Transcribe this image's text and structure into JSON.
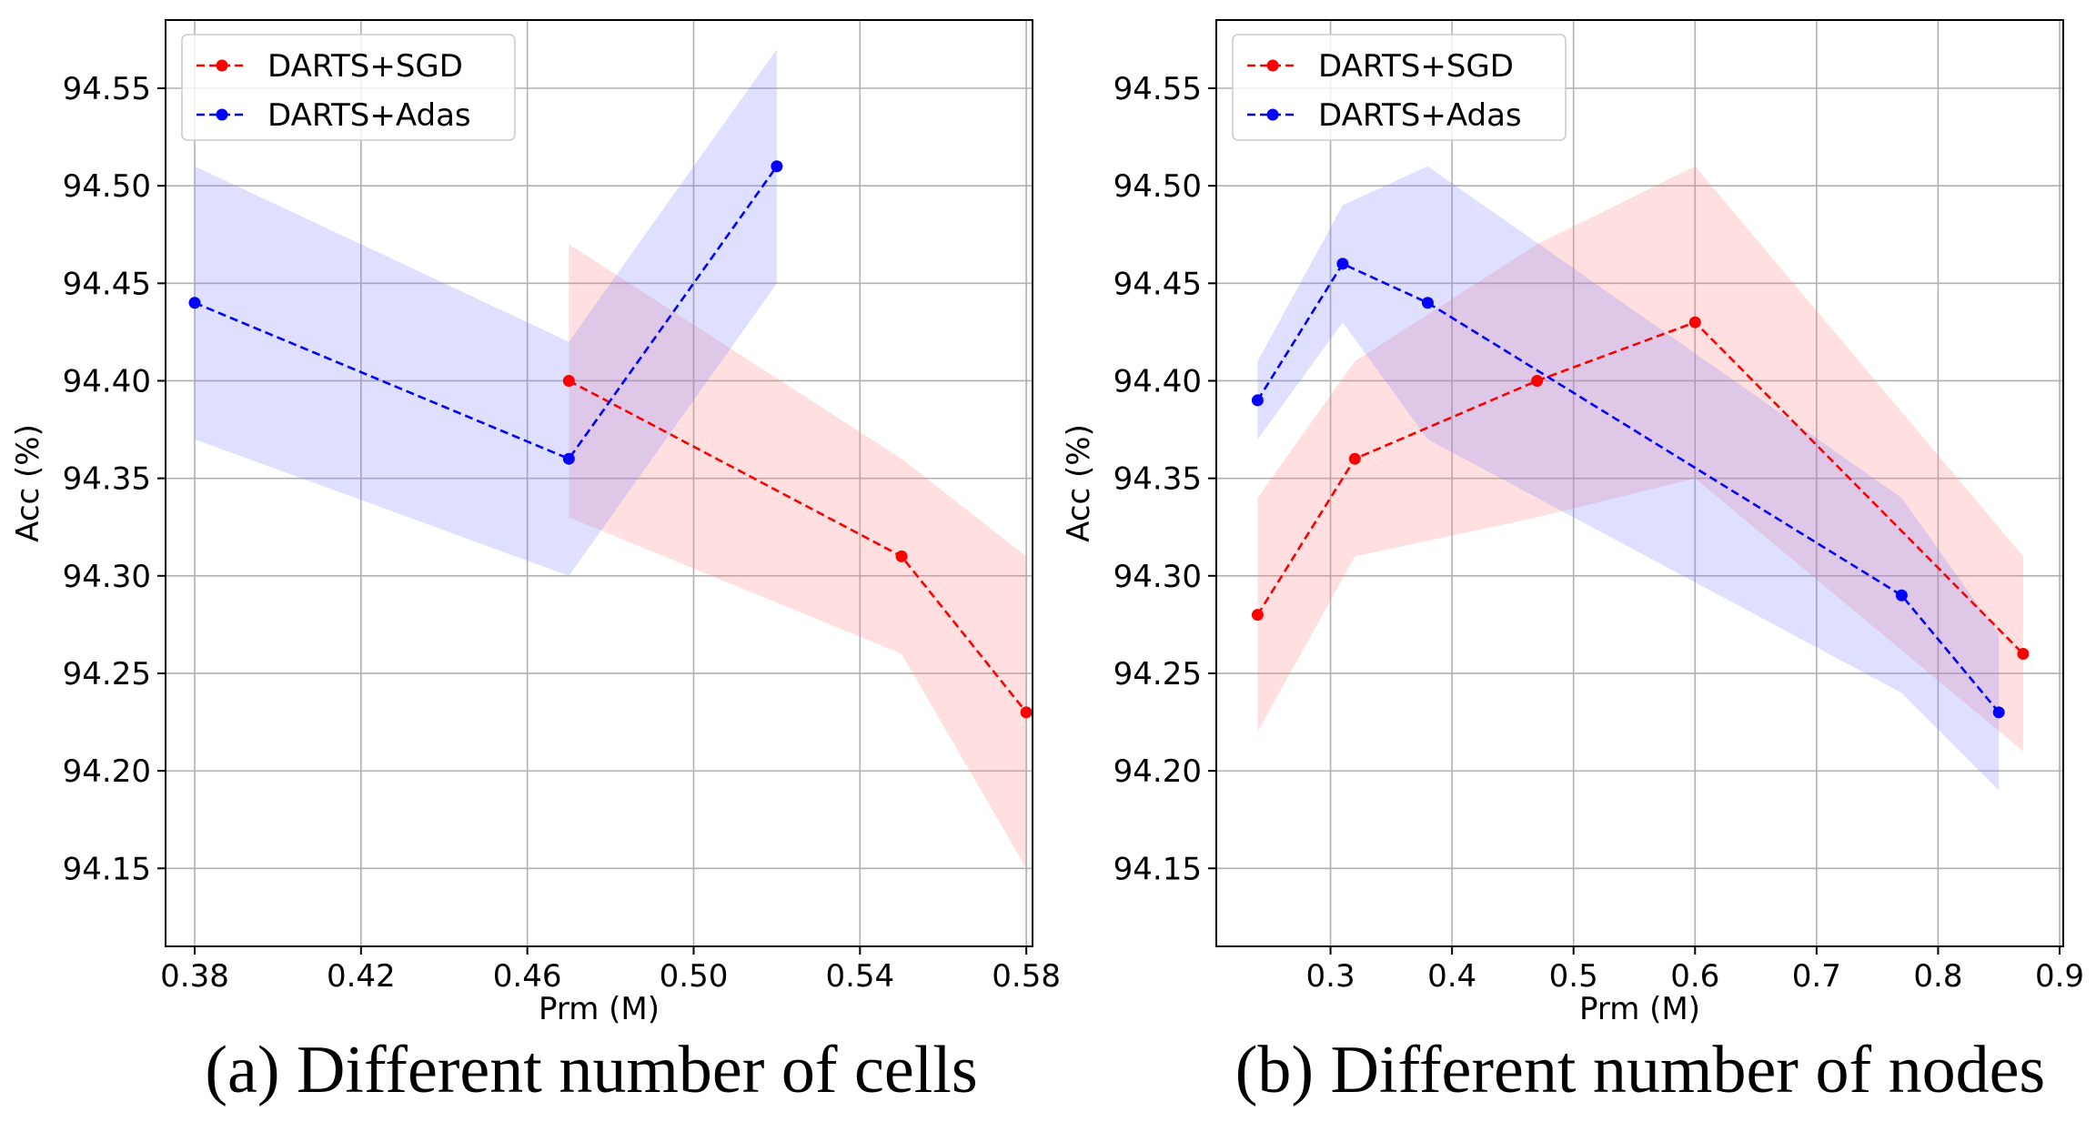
{
  "chart_data": [
    {
      "type": "line",
      "caption": "(a) Different number of cells",
      "xlabel": "Prm (M)",
      "ylabel": "Acc (%)",
      "xlim": [
        0.373,
        0.5815
      ],
      "ylim": [
        94.11,
        94.585
      ],
      "xticks": [
        0.38,
        0.42,
        0.46,
        0.5,
        0.54,
        0.58
      ],
      "xtick_labels": [
        "0.38",
        "0.42",
        "0.46",
        "0.50",
        "0.54",
        "0.58"
      ],
      "yticks": [
        94.15,
        94.2,
        94.25,
        94.3,
        94.35,
        94.4,
        94.45,
        94.5,
        94.55
      ],
      "ytick_labels": [
        "94.15",
        "94.20",
        "94.25",
        "94.30",
        "94.35",
        "94.40",
        "94.45",
        "94.50",
        "94.55"
      ],
      "grid": true,
      "legend_position": "top-left",
      "series": [
        {
          "name": "DARTS+SGD",
          "color": "#ff0000",
          "band_color": "#ff8080",
          "x": [
            0.47,
            0.55,
            0.58
          ],
          "y": [
            94.4,
            94.31,
            94.23
          ],
          "lower": [
            94.33,
            94.26,
            94.15
          ],
          "upper": [
            94.47,
            94.36,
            94.31
          ]
        },
        {
          "name": "DARTS+Adas",
          "color": "#0000ff",
          "band_color": "#8080ff",
          "x": [
            0.38,
            0.47,
            0.52
          ],
          "y": [
            94.44,
            94.36,
            94.51
          ],
          "lower": [
            94.37,
            94.3,
            94.45
          ],
          "upper": [
            94.51,
            94.42,
            94.57
          ]
        }
      ]
    },
    {
      "type": "line",
      "caption": "(b) Different number of nodes",
      "xlabel": "Prm (M)",
      "ylabel": "Acc (%)",
      "xlim": [
        0.206,
        0.903
      ],
      "ylim": [
        94.11,
        94.585
      ],
      "xticks": [
        0.3,
        0.4,
        0.5,
        0.6,
        0.7,
        0.8,
        0.9
      ],
      "xtick_labels": [
        "0.3",
        "0.4",
        "0.5",
        "0.6",
        "0.7",
        "0.8",
        "0.9"
      ],
      "yticks": [
        94.15,
        94.2,
        94.25,
        94.3,
        94.35,
        94.4,
        94.45,
        94.5,
        94.55
      ],
      "ytick_labels": [
        "94.15",
        "94.20",
        "94.25",
        "94.30",
        "94.35",
        "94.40",
        "94.45",
        "94.50",
        "94.55"
      ],
      "grid": true,
      "legend_position": "top-left",
      "series": [
        {
          "name": "DARTS+SGD",
          "color": "#ff0000",
          "band_color": "#ff8080",
          "x": [
            0.24,
            0.32,
            0.47,
            0.6,
            0.87
          ],
          "y": [
            94.28,
            94.36,
            94.4,
            94.43,
            94.26
          ],
          "lower": [
            94.22,
            94.31,
            94.33,
            94.35,
            94.21
          ],
          "upper": [
            94.34,
            94.41,
            94.47,
            94.51,
            94.31
          ]
        },
        {
          "name": "DARTS+Adas",
          "color": "#0000ff",
          "band_color": "#8080ff",
          "x": [
            0.24,
            0.31,
            0.38,
            0.77,
            0.85
          ],
          "y": [
            94.39,
            94.46,
            94.44,
            94.29,
            94.23
          ],
          "lower": [
            94.37,
            94.43,
            94.37,
            94.24,
            94.19
          ],
          "upper": [
            94.41,
            94.49,
            94.51,
            94.34,
            94.27
          ]
        }
      ]
    }
  ]
}
